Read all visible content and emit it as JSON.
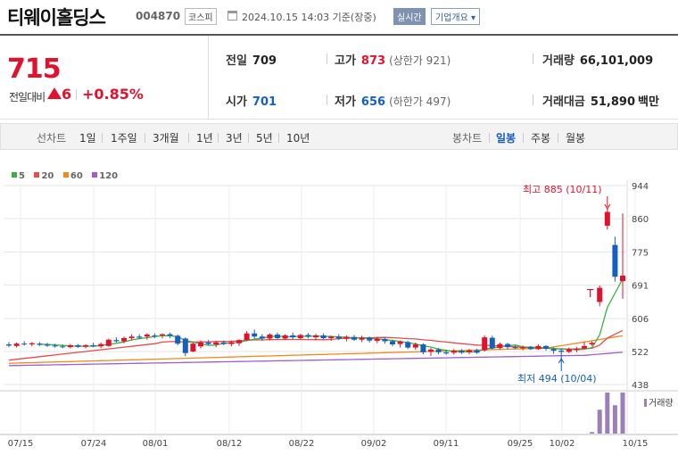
{
  "header": {
    "name": "티웨이홀딩스",
    "code": "004870",
    "market": "코스피",
    "time": "2024.10.15 14:03  기준(장중)",
    "realtime": "실시간",
    "corp_info": "기업개요"
  },
  "price": {
    "current": "715",
    "diff_label": "전일대비",
    "diff": "6",
    "rate": "+0.85%",
    "direction": "up"
  },
  "info": {
    "prev_close_label": "전일",
    "prev_close": "709",
    "high_label": "고가",
    "high": "873",
    "upper_limit": "(상한가 921)",
    "volume_label": "거래량",
    "volume": "66,101,009",
    "open_label": "시가",
    "open": "701",
    "low_label": "저가",
    "low": "656",
    "lower_limit": "(하한가 497)",
    "amount_label": "거래대금",
    "amount": "51,890",
    "amount_unit": "백만"
  },
  "toolbar": {
    "line_label": "선차트",
    "line_periods": [
      "1일",
      "1주일",
      "3개월",
      "1년",
      "3년",
      "5년",
      "10년"
    ],
    "candle_label": "봉차트",
    "candle_periods": [
      "일봉",
      "주봉",
      "월봉"
    ],
    "candle_selected": "일봉"
  },
  "colors": {
    "up": "#e2122e",
    "down": "#1560bd",
    "ma5": "#3cb043",
    "ma20": "#e84b4b",
    "ma60": "#f08c1e",
    "ma120": "#a05cd0",
    "volume": "#9b7fb8"
  },
  "chart_data": {
    "type": "candlestick",
    "legend": [
      {
        "name": "5",
        "color": "#3cb043"
      },
      {
        "name": "20",
        "color": "#e84b4b"
      },
      {
        "name": "60",
        "color": "#f08c1e"
      },
      {
        "name": "120",
        "color": "#a05cd0"
      }
    ],
    "ylim": [
      438,
      944
    ],
    "y_ticks": [
      "944",
      "860",
      "775",
      "691",
      "606",
      "522",
      "438"
    ],
    "x_ticks": [
      "07/15",
      "07/24",
      "08/01",
      "08/12",
      "08/22",
      "09/02",
      "09/11",
      "09/25",
      "10/02",
      "10/15"
    ],
    "annotations": {
      "high": "최고 885 (10/11)",
      "low": "최저 494 (10/04)"
    },
    "volume_label": "거래량",
    "candles": [
      {
        "o": 540,
        "h": 546,
        "l": 533,
        "c": 537
      },
      {
        "o": 536,
        "h": 545,
        "l": 532,
        "c": 542
      },
      {
        "o": 542,
        "h": 548,
        "l": 537,
        "c": 540
      },
      {
        "o": 540,
        "h": 546,
        "l": 535,
        "c": 543
      },
      {
        "o": 542,
        "h": 546,
        "l": 536,
        "c": 539
      },
      {
        "o": 539,
        "h": 544,
        "l": 534,
        "c": 537
      },
      {
        "o": 537,
        "h": 542,
        "l": 532,
        "c": 535
      },
      {
        "o": 535,
        "h": 540,
        "l": 530,
        "c": 533
      },
      {
        "o": 533,
        "h": 541,
        "l": 530,
        "c": 538
      },
      {
        "o": 538,
        "h": 541,
        "l": 531,
        "c": 534
      },
      {
        "o": 534,
        "h": 540,
        "l": 530,
        "c": 538
      },
      {
        "o": 538,
        "h": 544,
        "l": 533,
        "c": 535
      },
      {
        "o": 535,
        "h": 545,
        "l": 531,
        "c": 541
      },
      {
        "o": 536,
        "h": 555,
        "l": 534,
        "c": 552
      },
      {
        "o": 551,
        "h": 558,
        "l": 545,
        "c": 548
      },
      {
        "o": 548,
        "h": 560,
        "l": 543,
        "c": 556
      },
      {
        "o": 556,
        "h": 566,
        "l": 550,
        "c": 560
      },
      {
        "o": 560,
        "h": 566,
        "l": 553,
        "c": 557
      },
      {
        "o": 560,
        "h": 568,
        "l": 552,
        "c": 565
      },
      {
        "o": 563,
        "h": 568,
        "l": 556,
        "c": 562
      },
      {
        "o": 563,
        "h": 568,
        "l": 555,
        "c": 566
      },
      {
        "o": 566,
        "h": 570,
        "l": 556,
        "c": 562
      },
      {
        "o": 562,
        "h": 565,
        "l": 538,
        "c": 542
      },
      {
        "o": 555,
        "h": 558,
        "l": 510,
        "c": 518
      },
      {
        "o": 522,
        "h": 546,
        "l": 520,
        "c": 542
      },
      {
        "o": 535,
        "h": 550,
        "l": 530,
        "c": 545
      },
      {
        "o": 545,
        "h": 551,
        "l": 538,
        "c": 541
      },
      {
        "o": 540,
        "h": 549,
        "l": 533,
        "c": 545
      },
      {
        "o": 545,
        "h": 550,
        "l": 538,
        "c": 541
      },
      {
        "o": 541,
        "h": 550,
        "l": 535,
        "c": 546
      },
      {
        "o": 543,
        "h": 553,
        "l": 536,
        "c": 551
      },
      {
        "o": 551,
        "h": 574,
        "l": 548,
        "c": 568
      },
      {
        "o": 568,
        "h": 578,
        "l": 555,
        "c": 560
      },
      {
        "o": 560,
        "h": 566,
        "l": 549,
        "c": 555
      },
      {
        "o": 555,
        "h": 568,
        "l": 550,
        "c": 565
      },
      {
        "o": 565,
        "h": 570,
        "l": 552,
        "c": 556
      },
      {
        "o": 555,
        "h": 566,
        "l": 551,
        "c": 563
      },
      {
        "o": 563,
        "h": 570,
        "l": 553,
        "c": 558
      },
      {
        "o": 556,
        "h": 567,
        "l": 552,
        "c": 564
      },
      {
        "o": 564,
        "h": 569,
        "l": 555,
        "c": 560
      },
      {
        "o": 558,
        "h": 567,
        "l": 550,
        "c": 563
      },
      {
        "o": 563,
        "h": 568,
        "l": 553,
        "c": 556
      },
      {
        "o": 556,
        "h": 562,
        "l": 549,
        "c": 560
      },
      {
        "o": 560,
        "h": 566,
        "l": 551,
        "c": 555
      },
      {
        "o": 555,
        "h": 563,
        "l": 548,
        "c": 559
      },
      {
        "o": 559,
        "h": 564,
        "l": 549,
        "c": 552
      },
      {
        "o": 552,
        "h": 562,
        "l": 546,
        "c": 557
      },
      {
        "o": 557,
        "h": 560,
        "l": 545,
        "c": 550
      },
      {
        "o": 549,
        "h": 559,
        "l": 543,
        "c": 554
      },
      {
        "o": 554,
        "h": 558,
        "l": 542,
        "c": 548
      },
      {
        "o": 548,
        "h": 552,
        "l": 535,
        "c": 540
      },
      {
        "o": 541,
        "h": 550,
        "l": 532,
        "c": 547
      },
      {
        "o": 546,
        "h": 549,
        "l": 528,
        "c": 532
      },
      {
        "o": 532,
        "h": 545,
        "l": 526,
        "c": 540
      },
      {
        "o": 540,
        "h": 543,
        "l": 515,
        "c": 520
      },
      {
        "o": 521,
        "h": 531,
        "l": 511,
        "c": 527
      },
      {
        "o": 527,
        "h": 531,
        "l": 515,
        "c": 520
      },
      {
        "o": 520,
        "h": 526,
        "l": 514,
        "c": 517
      },
      {
        "o": 519,
        "h": 528,
        "l": 514,
        "c": 524
      },
      {
        "o": 524,
        "h": 528,
        "l": 516,
        "c": 519
      },
      {
        "o": 520,
        "h": 529,
        "l": 515,
        "c": 525
      },
      {
        "o": 525,
        "h": 529,
        "l": 516,
        "c": 519
      },
      {
        "o": 525,
        "h": 563,
        "l": 522,
        "c": 558
      },
      {
        "o": 557,
        "h": 562,
        "l": 527,
        "c": 530
      },
      {
        "o": 531,
        "h": 545,
        "l": 527,
        "c": 541
      },
      {
        "o": 541,
        "h": 544,
        "l": 528,
        "c": 533
      },
      {
        "o": 533,
        "h": 538,
        "l": 528,
        "c": 531
      },
      {
        "o": 530,
        "h": 537,
        "l": 525,
        "c": 533
      },
      {
        "o": 533,
        "h": 536,
        "l": 526,
        "c": 528
      },
      {
        "o": 528,
        "h": 540,
        "l": 526,
        "c": 536
      },
      {
        "o": 536,
        "h": 538,
        "l": 524,
        "c": 529
      },
      {
        "o": 528,
        "h": 532,
        "l": 516,
        "c": 524
      },
      {
        "o": 524,
        "h": 530,
        "l": 494,
        "c": 521
      },
      {
        "o": 521,
        "h": 532,
        "l": 518,
        "c": 528
      },
      {
        "o": 526,
        "h": 533,
        "l": 520,
        "c": 529
      },
      {
        "o": 530,
        "h": 546,
        "l": 528,
        "c": 536
      },
      {
        "o": 540,
        "h": 548,
        "l": 536,
        "c": 544
      },
      {
        "o": 648,
        "h": 690,
        "l": 637,
        "c": 684
      },
      {
        "o": 842,
        "h": 885,
        "l": 832,
        "c": 877
      },
      {
        "o": 793,
        "h": 814,
        "l": 700,
        "c": 712
      },
      {
        "o": 701,
        "h": 873,
        "l": 656,
        "c": 715
      }
    ],
    "volume": [
      0,
      0,
      0,
      0,
      0,
      0,
      0,
      0,
      0,
      0,
      0,
      0,
      0,
      0,
      0,
      0,
      0,
      0,
      0,
      0,
      0,
      0,
      0,
      0,
      0,
      0,
      0,
      0,
      0,
      0,
      0,
      0,
      0,
      0,
      0,
      0,
      0,
      0,
      0,
      0,
      0,
      0,
      0,
      0,
      0,
      0,
      0,
      0,
      0,
      0,
      0,
      0,
      0,
      0,
      0,
      0,
      0,
      0,
      0,
      0,
      0,
      0,
      0,
      0,
      0,
      0,
      0,
      0,
      0,
      0,
      0,
      0,
      0,
      0,
      0,
      0,
      0.2,
      3.2,
      5.5,
      3.8,
      5.5
    ]
  }
}
